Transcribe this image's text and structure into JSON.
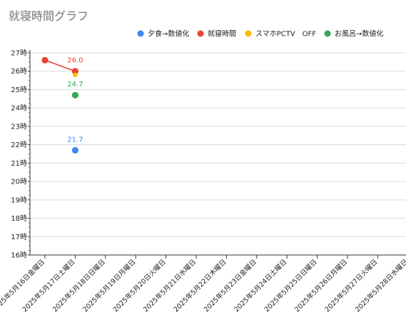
{
  "chart_data": {
    "type": "scatter",
    "title": "就寝時間グラフ",
    "categories": [
      "2025年5月16日金曜日",
      "2025年5月17日土曜日",
      "2025年5月18日日曜日",
      "2025年5月19日月曜日",
      "2025年5月20日火曜日",
      "2025年5月21日水曜日",
      "2025年5月22日木曜日",
      "2025年5月23日金曜日",
      "2025年5月24日土曜日",
      "2025年5月25日日曜日",
      "2025年5月26日月曜日",
      "2025年5月27日火曜日",
      "2025年5月28日水曜日"
    ],
    "y_ticks": [
      16,
      17,
      18,
      19,
      20,
      21,
      22,
      23,
      24,
      25,
      26,
      27
    ],
    "y_tick_suffix": "時",
    "ylim": [
      16,
      27
    ],
    "grid": true,
    "legend_position": "top-right",
    "series": [
      {
        "name": "夕食→数値化",
        "color": "#4285f4",
        "values": [
          null,
          21.7
        ],
        "labels": [
          null,
          "21.7"
        ],
        "connect": false
      },
      {
        "name": "就寝時間",
        "color": "#ea4335",
        "values": [
          26.6,
          26.0
        ],
        "labels": [
          null,
          "26.0"
        ],
        "connect": true
      },
      {
        "name": "スマホPCTV　OFF",
        "color": "#fbbc04",
        "values": [
          null,
          25.8
        ],
        "labels": [
          null,
          null
        ],
        "connect": false,
        "small": true
      },
      {
        "name": "お風呂→数値化",
        "color": "#34a853",
        "values": [
          null,
          24.7
        ],
        "labels": [
          null,
          "24.7"
        ],
        "connect": false
      }
    ]
  }
}
